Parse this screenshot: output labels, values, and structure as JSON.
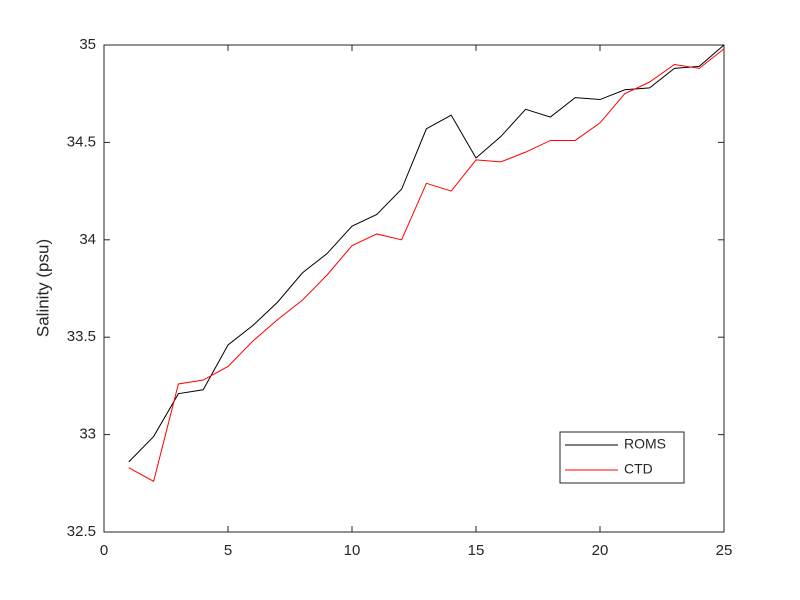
{
  "chart_data": {
    "type": "line",
    "ylabel": "Salinity (psu)",
    "x": [
      1,
      2,
      3,
      4,
      5,
      6,
      7,
      8,
      9,
      10,
      11,
      12,
      13,
      14,
      15,
      16,
      17,
      18,
      19,
      20,
      21,
      22,
      23,
      24,
      25
    ],
    "series": [
      {
        "name": "ROMS",
        "color": "#000000",
        "values": [
          32.86,
          32.99,
          33.21,
          33.23,
          33.46,
          33.56,
          33.68,
          33.83,
          33.93,
          34.07,
          34.13,
          34.26,
          34.57,
          34.64,
          34.42,
          34.53,
          34.67,
          34.63,
          34.73,
          34.72,
          34.77,
          34.78,
          34.88,
          34.89,
          35.0
        ]
      },
      {
        "name": "CTD",
        "color": "#ff0000",
        "values": [
          32.83,
          32.76,
          33.26,
          33.28,
          33.35,
          33.48,
          33.59,
          33.69,
          33.82,
          33.97,
          34.03,
          34.0,
          34.29,
          34.25,
          34.41,
          34.4,
          34.45,
          34.51,
          34.51,
          34.6,
          34.75,
          34.81,
          34.9,
          34.88,
          34.98
        ]
      }
    ],
    "xlim": [
      0,
      25
    ],
    "xticks": [
      0,
      5,
      10,
      15,
      20,
      25
    ],
    "ylim": [
      32.5,
      35
    ],
    "yticks": [
      32.5,
      33,
      33.5,
      34,
      34.5,
      35
    ],
    "grid": false,
    "legend": "lower right"
  }
}
